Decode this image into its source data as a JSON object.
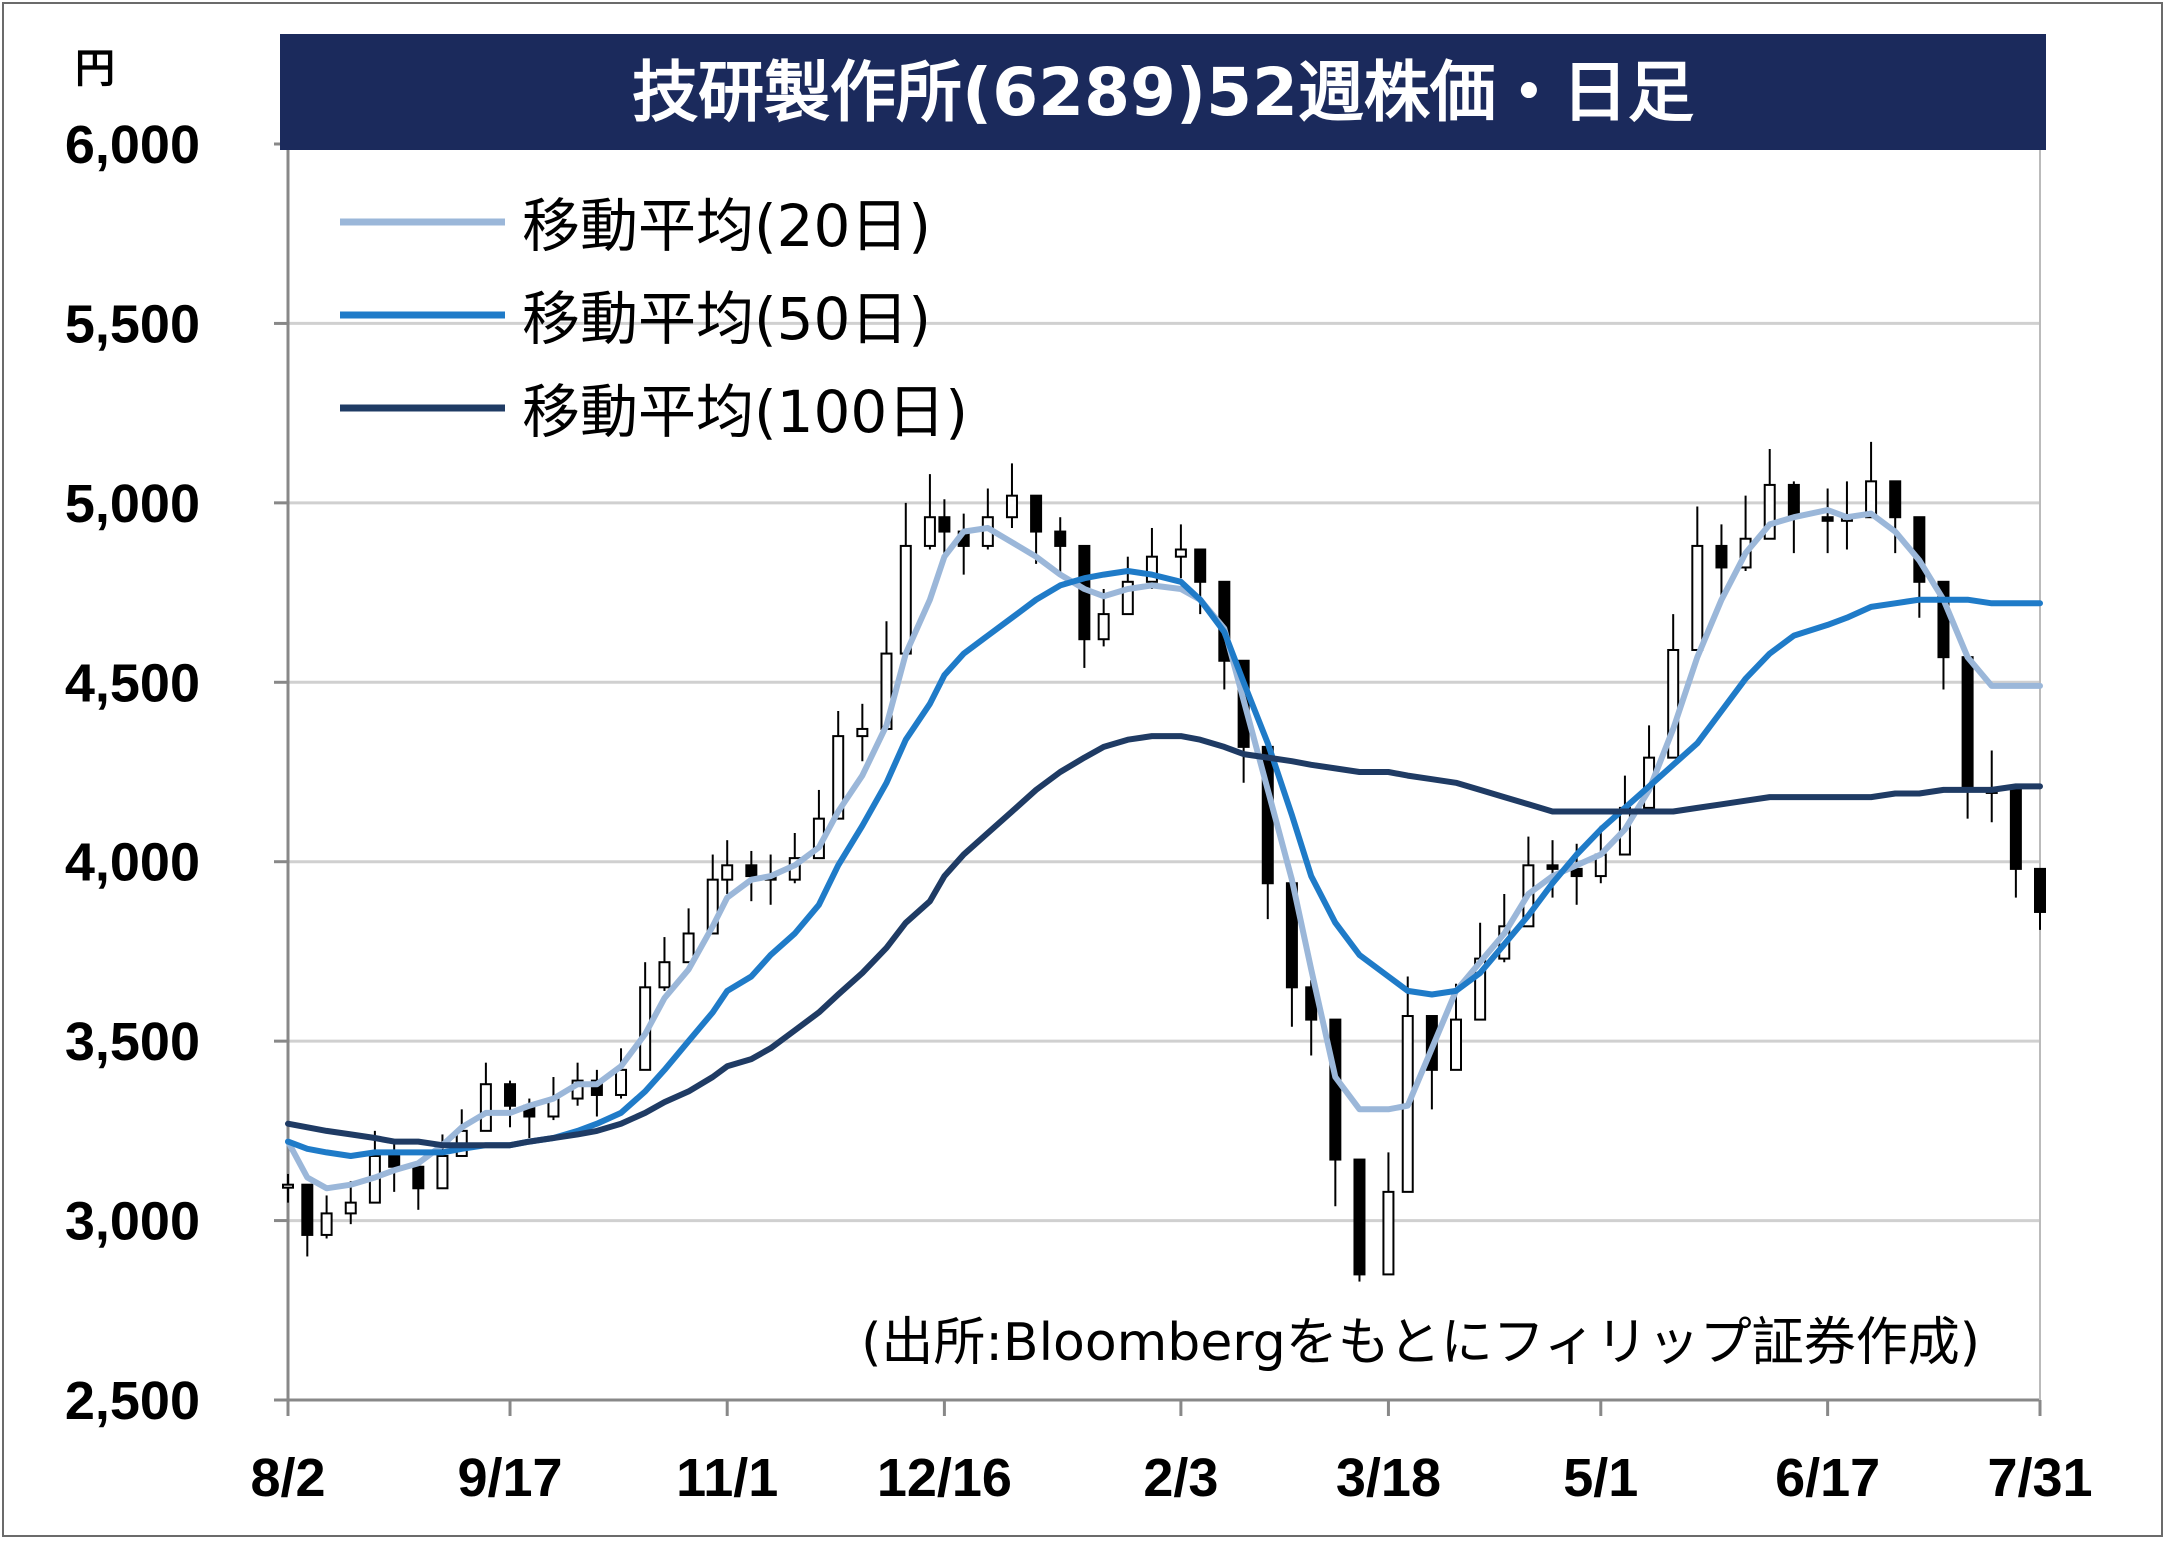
{
  "chart_data": {
    "type": "candlestick",
    "title": "技研製作所(6289)52週株価・日足",
    "y_unit": "円",
    "source_note": "(出所:Bloombergをもとにフィリップ証券作成)",
    "ylim": [
      2500,
      6000
    ],
    "y_ticks": [
      {
        "value": 2500,
        "label": "2,500"
      },
      {
        "value": 3000,
        "label": "3,000"
      },
      {
        "value": 3500,
        "label": "3,500"
      },
      {
        "value": 4000,
        "label": "4,000"
      },
      {
        "value": 4500,
        "label": "4,500"
      },
      {
        "value": 5000,
        "label": "5,000"
      },
      {
        "value": 5500,
        "label": "5,500"
      },
      {
        "value": 6000,
        "label": "6,000"
      }
    ],
    "x_ticks": [
      {
        "value": "2018-08-02",
        "label": "8/2"
      },
      {
        "value": "2018-09-17",
        "label": "9/17"
      },
      {
        "value": "2018-11-01",
        "label": "11/1"
      },
      {
        "value": "2018-12-16",
        "label": "12/16"
      },
      {
        "value": "2019-02-03",
        "label": "2/3"
      },
      {
        "value": "2019-03-18",
        "label": "3/18"
      },
      {
        "value": "2019-05-01",
        "label": "5/1"
      },
      {
        "value": "2019-06-17",
        "label": "6/17"
      },
      {
        "value": "2019-07-31",
        "label": "7/31"
      }
    ],
    "xlim": [
      "2018-08-02",
      "2019-07-31"
    ],
    "grid": true,
    "legend_position": "top-left",
    "price_series": {
      "name": "",
      "dates": [
        "2018-08-02",
        "2018-08-06",
        "2018-08-10",
        "2018-08-15",
        "2018-08-20",
        "2018-08-24",
        "2018-08-29",
        "2018-09-03",
        "2018-09-07",
        "2018-09-12",
        "2018-09-17",
        "2018-09-21",
        "2018-09-26",
        "2018-10-01",
        "2018-10-05",
        "2018-10-10",
        "2018-10-15",
        "2018-10-19",
        "2018-10-24",
        "2018-10-29",
        "2018-11-01",
        "2018-11-06",
        "2018-11-10",
        "2018-11-15",
        "2018-11-20",
        "2018-11-24",
        "2018-11-29",
        "2018-12-04",
        "2018-12-08",
        "2018-12-13",
        "2018-12-16",
        "2018-12-20",
        "2018-12-25",
        "2018-12-30",
        "2019-01-04",
        "2019-01-09",
        "2019-01-14",
        "2019-01-18",
        "2019-01-23",
        "2019-01-28",
        "2019-02-03",
        "2019-02-07",
        "2019-02-12",
        "2019-02-16",
        "2019-02-21",
        "2019-02-26",
        "2019-03-02",
        "2019-03-07",
        "2019-03-12",
        "2019-03-18",
        "2019-03-22",
        "2019-03-27",
        "2019-04-01",
        "2019-04-06",
        "2019-04-11",
        "2019-04-16",
        "2019-04-21",
        "2019-04-26",
        "2019-05-01",
        "2019-05-06",
        "2019-05-11",
        "2019-05-16",
        "2019-05-21",
        "2019-05-26",
        "2019-05-31",
        "2019-06-05",
        "2019-06-10",
        "2019-06-17",
        "2019-06-21",
        "2019-06-26",
        "2019-07-01",
        "2019-07-06",
        "2019-07-11",
        "2019-07-16",
        "2019-07-21",
        "2019-07-26",
        "2019-07-31"
      ],
      "close": [
        3100,
        2960,
        3020,
        3050,
        3180,
        3150,
        3090,
        3180,
        3250,
        3380,
        3320,
        3290,
        3340,
        3390,
        3350,
        3420,
        3650,
        3720,
        3800,
        3950,
        3990,
        3960,
        3950,
        4010,
        4120,
        4350,
        4370,
        4580,
        4880,
        4960,
        4920,
        4880,
        4960,
        5020,
        4920,
        4880,
        4620,
        4690,
        4780,
        4850,
        4870,
        4780,
        4560,
        4320,
        3940,
        3650,
        3560,
        3170,
        2850,
        3080,
        3570,
        3420,
        3560,
        3730,
        3820,
        3990,
        3980,
        3960,
        4020,
        4150,
        4290,
        4590,
        4880,
        4820,
        4900,
        5050,
        4960,
        4950,
        4960,
        5060,
        4960,
        4780,
        4570,
        4200,
        4200,
        3980,
        3860
      ],
      "high": [
        3130,
        3020,
        3070,
        3110,
        3250,
        3220,
        3160,
        3240,
        3310,
        3440,
        3390,
        3340,
        3400,
        3440,
        3420,
        3480,
        3720,
        3790,
        3870,
        4020,
        4060,
        4030,
        4020,
        4080,
        4200,
        4420,
        4440,
        4670,
        5000,
        5080,
        5010,
        4970,
        5040,
        5110,
        4990,
        4960,
        4700,
        4760,
        4850,
        4930,
        4940,
        4860,
        4640,
        4430,
        4040,
        3760,
        3670,
        3310,
        3000,
        3190,
        3680,
        3520,
        3660,
        3830,
        3910,
        4070,
        4060,
        4050,
        4100,
        4240,
        4380,
        4690,
        4990,
        4940,
        5020,
        5150,
        5060,
        5040,
        5060,
        5170,
        5060,
        4880,
        4660,
        4290,
        4310,
        4060,
        3940
      ],
      "low": [
        3050,
        2900,
        2950,
        2990,
        3120,
        3080,
        3030,
        3120,
        3190,
        3290,
        3260,
        3230,
        3280,
        3320,
        3290,
        3340,
        3560,
        3640,
        3720,
        3860,
        3910,
        3890,
        3880,
        3940,
        4050,
        4250,
        4280,
        4480,
        4800,
        4870,
        4840,
        4800,
        4870,
        4930,
        4830,
        4800,
        4540,
        4600,
        4700,
        4760,
        4790,
        4690,
        4480,
        4220,
        3840,
        3540,
        3460,
        3040,
        2830,
        2960,
        3460,
        3310,
        3460,
        3620,
        3720,
        3910,
        3900,
        3880,
        3940,
        4060,
        4200,
        4490,
        4780,
        4720,
        4810,
        4950,
        4860,
        4860,
        4870,
        4970,
        4860,
        4680,
        4480,
        4120,
        4110,
        3900,
        3810
      ]
    },
    "series": [
      {
        "name": "移動平均(20日)",
        "color": "#9bb7d9",
        "values": [
          3220,
          3120,
          3090,
          3100,
          3120,
          3140,
          3160,
          3210,
          3260,
          3300,
          3300,
          3320,
          3340,
          3380,
          3380,
          3430,
          3520,
          3620,
          3700,
          3820,
          3900,
          3950,
          3960,
          3990,
          4040,
          4140,
          4240,
          4380,
          4580,
          4730,
          4850,
          4920,
          4930,
          4890,
          4850,
          4800,
          4760,
          4740,
          4760,
          4770,
          4760,
          4730,
          4650,
          4450,
          4200,
          3950,
          3700,
          3400,
          3310,
          3310,
          3320,
          3480,
          3640,
          3720,
          3800,
          3910,
          3960,
          3990,
          4020,
          4090,
          4200,
          4370,
          4570,
          4730,
          4860,
          4940,
          4960,
          4980,
          4960,
          4970,
          4920,
          4840,
          4730,
          4570,
          4490,
          4490,
          4490
        ]
      },
      {
        "name": "移動平均(50日)",
        "color": "#1f7bc8",
        "values": [
          3220,
          3200,
          3190,
          3180,
          3190,
          3190,
          3190,
          3190,
          3200,
          3210,
          3210,
          3220,
          3230,
          3250,
          3270,
          3300,
          3360,
          3420,
          3500,
          3580,
          3640,
          3680,
          3740,
          3800,
          3880,
          3990,
          4100,
          4220,
          4340,
          4440,
          4520,
          4580,
          4630,
          4680,
          4730,
          4770,
          4790,
          4800,
          4810,
          4800,
          4780,
          4730,
          4640,
          4500,
          4330,
          4130,
          3960,
          3830,
          3740,
          3680,
          3640,
          3630,
          3640,
          3690,
          3770,
          3850,
          3940,
          4020,
          4090,
          4150,
          4210,
          4270,
          4330,
          4420,
          4510,
          4580,
          4630,
          4660,
          4680,
          4710,
          4720,
          4730,
          4730,
          4730,
          4720,
          4720,
          4720
        ]
      },
      {
        "name": "移動平均(100日)",
        "color": "#1f3b64",
        "values": [
          3270,
          3260,
          3250,
          3240,
          3230,
          3220,
          3220,
          3210,
          3210,
          3210,
          3210,
          3220,
          3230,
          3240,
          3250,
          3270,
          3300,
          3330,
          3360,
          3400,
          3430,
          3450,
          3480,
          3530,
          3580,
          3630,
          3690,
          3760,
          3830,
          3890,
          3960,
          4020,
          4080,
          4140,
          4200,
          4250,
          4290,
          4320,
          4340,
          4350,
          4350,
          4340,
          4320,
          4300,
          4290,
          4280,
          4270,
          4260,
          4250,
          4250,
          4240,
          4230,
          4220,
          4200,
          4180,
          4160,
          4140,
          4140,
          4140,
          4140,
          4140,
          4140,
          4150,
          4160,
          4170,
          4180,
          4180,
          4180,
          4180,
          4180,
          4190,
          4190,
          4200,
          4200,
          4200,
          4210,
          4210
        ]
      }
    ]
  }
}
